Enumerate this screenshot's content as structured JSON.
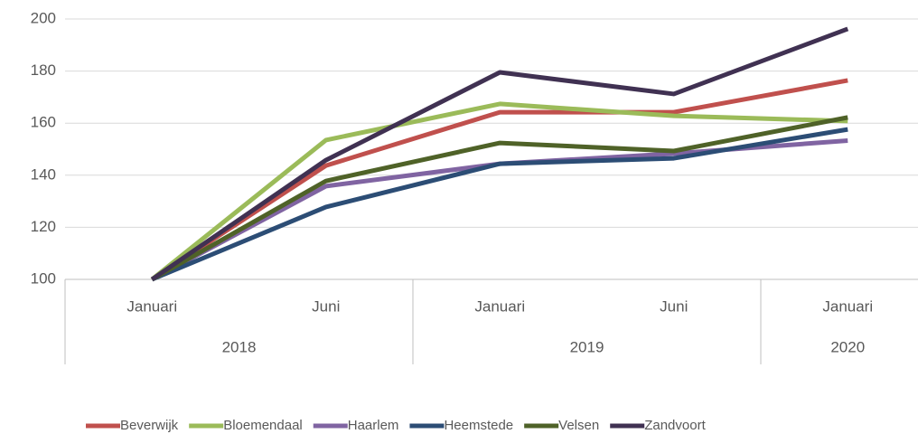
{
  "chart_data": {
    "type": "line",
    "categories": [
      "Januari",
      "Juni",
      "Januari",
      "Juni",
      "Januari"
    ],
    "x_groups": [
      "2018",
      "2018",
      "2019",
      "2019",
      "2020"
    ],
    "series": [
      {
        "name": "Beverwijk",
        "color": "#c0504d",
        "values": [
          100,
          143.7,
          164.2,
          164.2,
          176.4
        ]
      },
      {
        "name": "Bloemendaal",
        "color": "#9bbb59",
        "values": [
          100,
          153.5,
          167.4,
          162.8,
          160.8
        ]
      },
      {
        "name": "Haarlem",
        "color": "#8064a2",
        "values": [
          100,
          135.8,
          144.4,
          148.3,
          153.3
        ]
      },
      {
        "name": "Heemstede",
        "color": "#2c4d75",
        "values": [
          100,
          127.8,
          144.4,
          146.5,
          157.6
        ]
      },
      {
        "name": "Velsen",
        "color": "#4f6228",
        "values": [
          100,
          137.8,
          152.4,
          149.3,
          162.2
        ]
      },
      {
        "name": "Zandvoort",
        "color": "#403152",
        "values": [
          100,
          145.8,
          179.5,
          171.2,
          196.2
        ]
      }
    ],
    "ylim": [
      100,
      200
    ],
    "yticks": [
      100,
      120,
      140,
      160,
      180,
      200
    ],
    "grid": true,
    "legend": "bottom"
  }
}
